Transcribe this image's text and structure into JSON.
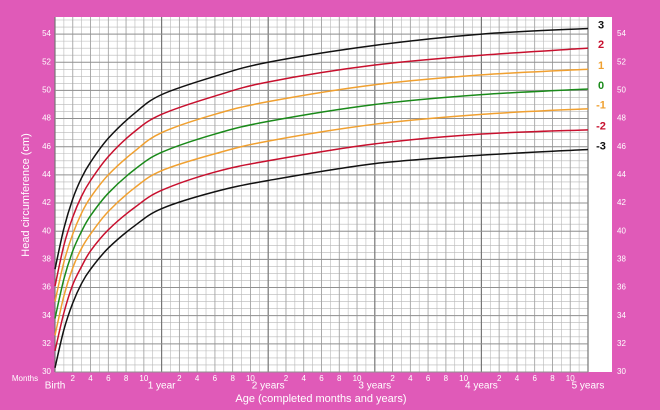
{
  "chart_data": {
    "type": "line",
    "y_label": "Head circumference (cm)",
    "x_label": "Age (completed months and years)",
    "x_unit_label": "Months",
    "x": [
      0,
      1,
      2,
      3,
      4,
      6,
      9,
      12,
      18,
      24,
      36,
      48,
      60
    ],
    "xlim": [
      0,
      60
    ],
    "xticks": [
      {
        "value": 0,
        "label": "Birth"
      },
      2,
      4,
      6,
      8,
      10,
      {
        "value": 12,
        "label": "1 year"
      },
      {
        "value": 14,
        "label": "2"
      },
      {
        "value": 16,
        "label": "4"
      },
      {
        "value": 18,
        "label": "6"
      },
      {
        "value": 20,
        "label": "8"
      },
      {
        "value": 22,
        "label": "10"
      },
      {
        "value": 24,
        "label": "2 years"
      },
      {
        "value": 26,
        "label": "2"
      },
      {
        "value": 28,
        "label": "4"
      },
      {
        "value": 30,
        "label": "6"
      },
      {
        "value": 32,
        "label": "8"
      },
      {
        "value": 34,
        "label": "10"
      },
      {
        "value": 36,
        "label": "3 years"
      },
      {
        "value": 38,
        "label": "2"
      },
      {
        "value": 40,
        "label": "4"
      },
      {
        "value": 42,
        "label": "6"
      },
      {
        "value": 44,
        "label": "8"
      },
      {
        "value": 46,
        "label": "10"
      },
      {
        "value": 48,
        "label": "4 years"
      },
      {
        "value": 50,
        "label": "2"
      },
      {
        "value": 52,
        "label": "4"
      },
      {
        "value": 54,
        "label": "6"
      },
      {
        "value": 56,
        "label": "8"
      },
      {
        "value": 58,
        "label": "10"
      },
      {
        "value": 60,
        "label": "5 years"
      }
    ],
    "ylim": [
      30,
      55
    ],
    "yticks": [
      30,
      32,
      34,
      36,
      38,
      40,
      42,
      44,
      46,
      48,
      50,
      52,
      54
    ],
    "grid": true,
    "series": [
      {
        "name": "3",
        "color": "#111111",
        "values": [
          37.3,
          40.2,
          42.3,
          43.8,
          44.9,
          46.6,
          48.4,
          49.7,
          51.0,
          52.0,
          53.2,
          54.0,
          54.4
        ]
      },
      {
        "name": "2",
        "color": "#c8102e",
        "values": [
          36.1,
          39.0,
          41.0,
          42.5,
          43.6,
          45.3,
          47.1,
          48.3,
          49.6,
          50.6,
          51.8,
          52.5,
          53.0
        ]
      },
      {
        "name": "1",
        "color": "#f0a030",
        "values": [
          35.0,
          37.8,
          39.8,
          41.3,
          42.4,
          44.0,
          45.7,
          47.0,
          48.3,
          49.2,
          50.4,
          51.1,
          51.5
        ]
      },
      {
        "name": "0",
        "color": "#1a8a1a",
        "values": [
          33.8,
          36.6,
          38.6,
          40.0,
          41.1,
          42.7,
          44.4,
          45.6,
          46.9,
          47.8,
          49.0,
          49.7,
          50.1
        ]
      },
      {
        "name": "-1",
        "color": "#f0a030",
        "values": [
          32.6,
          35.4,
          37.4,
          38.8,
          39.8,
          41.4,
          43.1,
          44.3,
          45.5,
          46.4,
          47.6,
          48.3,
          48.7
        ]
      },
      {
        "name": "-2",
        "color": "#c8102e",
        "values": [
          31.5,
          34.2,
          36.2,
          37.5,
          38.6,
          40.1,
          41.7,
          42.9,
          44.2,
          45.0,
          46.2,
          46.9,
          47.2
        ]
      },
      {
        "name": "-3",
        "color": "#111111",
        "values": [
          30.3,
          33.0,
          34.9,
          36.3,
          37.3,
          38.8,
          40.4,
          41.6,
          42.8,
          43.6,
          44.8,
          45.4,
          45.8
        ]
      }
    ]
  }
}
